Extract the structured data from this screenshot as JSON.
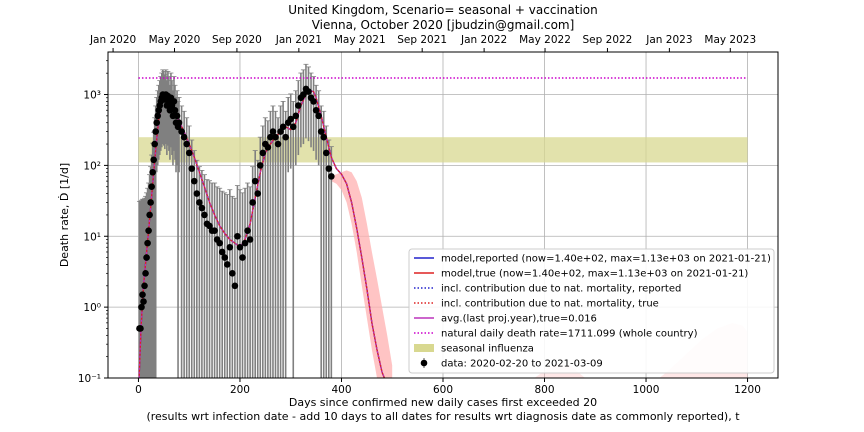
{
  "chart_data": {
    "type": "line",
    "title_line1": "United Kingdom, Scenario= seasonal + vaccination",
    "title_line2": "Vienna, October 2020 [jbudzin@gmail.com]",
    "xlabel_line1": "Days since confirmed new daily cases first exceeded 20",
    "xlabel_line2": "(results wrt infection date - add 10 days to all dates for results wrt diagnosis date as commonly reported), t",
    "ylabel": "Death rate, Ḋ [1/d]",
    "xlim": [
      -60,
      1260
    ],
    "ylim_log10": [
      -1,
      3.6
    ],
    "x_ticks": [
      "0",
      "200",
      "400",
      "600",
      "800",
      "1000",
      "1200"
    ],
    "x_tick_values": [
      0,
      200,
      400,
      600,
      800,
      1000,
      1200
    ],
    "y_ticks": [
      "10⁻¹",
      "10⁰",
      "10¹",
      "10²",
      "10³"
    ],
    "y_tick_exponents": [
      -1,
      0,
      1,
      2,
      3
    ],
    "top_ticks": [
      "Jan 2020",
      "May 2020",
      "Sep 2020",
      "Jan 2021",
      "May 2021",
      "Sep 2021",
      "Jan 2022",
      "May 2022",
      "Sep 2022",
      "Jan 2023",
      "May 2023"
    ],
    "top_tick_values": [
      -50,
      71,
      194,
      316,
      436,
      559,
      681,
      801,
      924,
      1046,
      1166
    ],
    "grid": true,
    "legend_position": "lower-right",
    "legend": [
      "model,reported (now=1.40e+02, max=1.13e+03 on 2021-01-21)",
      "model,true (now=1.40e+02, max=1.13e+03 on 2021-01-21)",
      "incl. contribution due to nat. mortality, reported",
      "incl. contribution due to nat. mortality, true",
      "avg.(last proj.year),true=0.016",
      "natural daily death rate=1711.099 (whole country)",
      "seasonal influenza",
      "data: 2020-02-20 to 2021-03-09"
    ],
    "colors": {
      "model_reported": "#2222cc",
      "model_true": "#dd2222",
      "nat_reported": "#2222cc",
      "nat_true": "#dd2222",
      "avg": "#bb33bb",
      "natural": "#cc00cc",
      "influenza": "#d8d890",
      "data": "#000000",
      "errorbar": "#808080",
      "uncertainty_band": "#ffb0b0"
    },
    "natural_daily_death_rate": 1711.099,
    "influenza_band": {
      "x": [
        0,
        1200
      ],
      "y": [
        110,
        250
      ]
    },
    "model_curve": {
      "x": [
        0,
        5,
        10,
        15,
        20,
        25,
        30,
        35,
        40,
        45,
        50,
        55,
        60,
        70,
        80,
        90,
        100,
        110,
        120,
        130,
        140,
        150,
        160,
        170,
        180,
        190,
        200,
        210,
        220,
        230,
        240,
        250,
        260,
        270,
        280,
        290,
        300,
        310,
        320,
        330,
        340,
        345,
        350,
        360,
        370,
        380,
        390,
        400,
        410,
        420,
        430,
        440,
        450,
        460,
        470,
        480,
        490,
        500
      ],
      "y": [
        0.06,
        0.5,
        2,
        5,
        12,
        30,
        80,
        200,
        450,
        750,
        950,
        1000,
        900,
        650,
        420,
        300,
        200,
        130,
        80,
        50,
        30,
        20,
        14,
        11,
        9,
        8,
        7,
        9,
        15,
        35,
        80,
        150,
        200,
        250,
        300,
        350,
        320,
        400,
        700,
        1000,
        1130,
        1100,
        900,
        500,
        250,
        130,
        90,
        75,
        55,
        30,
        13,
        5,
        1.8,
        0.6,
        0.25,
        0.12,
        0.08,
        0.05
      ]
    },
    "data_points": {
      "x": [
        2,
        4,
        6,
        8,
        10,
        12,
        14,
        16,
        18,
        20,
        22,
        24,
        26,
        28,
        30,
        32,
        34,
        36,
        38,
        40,
        42,
        44,
        46,
        48,
        50,
        52,
        54,
        56,
        58,
        60,
        62,
        64,
        66,
        68,
        70,
        72,
        74,
        76,
        78,
        80,
        85,
        90,
        95,
        100,
        105,
        110,
        115,
        120,
        125,
        130,
        135,
        140,
        145,
        150,
        155,
        160,
        165,
        170,
        175,
        180,
        185,
        190,
        195,
        200,
        205,
        210,
        215,
        220,
        225,
        230,
        235,
        240,
        245,
        250,
        255,
        260,
        265,
        270,
        275,
        280,
        285,
        290,
        295,
        300,
        305,
        310,
        315,
        320,
        325,
        330,
        335,
        340,
        345,
        350,
        355,
        360,
        365,
        370,
        375,
        380
      ],
      "y": [
        0.5,
        0.5,
        1,
        1.5,
        1.2,
        2,
        3,
        5,
        8,
        12,
        20,
        30,
        50,
        80,
        120,
        200,
        300,
        400,
        500,
        600,
        700,
        800,
        900,
        1000,
        950,
        850,
        1000,
        700,
        950,
        800,
        600,
        900,
        700,
        500,
        800,
        600,
        400,
        500,
        350,
        400,
        300,
        250,
        200,
        150,
        90,
        60,
        40,
        30,
        25,
        20,
        15,
        14,
        12,
        12,
        9,
        8,
        6,
        5,
        4,
        7,
        3,
        2,
        10,
        7,
        5,
        8,
        12,
        9,
        30,
        60,
        40,
        100,
        150,
        200,
        180,
        250,
        300,
        250,
        200,
        300,
        350,
        250,
        400,
        450,
        350,
        500,
        700,
        900,
        1000,
        1200,
        1100,
        900,
        800,
        600,
        500,
        300,
        250,
        150,
        90,
        70
      ]
    },
    "uncertainty_band": {
      "x": [
        380,
        390,
        400,
        410,
        420,
        430,
        440,
        450,
        460,
        470,
        480,
        490,
        500
      ],
      "upper": [
        70,
        75,
        80,
        85,
        80,
        60,
        35,
        15,
        6,
        2.5,
        1,
        0.4,
        0.15
      ],
      "lower": [
        60,
        55,
        45,
        30,
        15,
        6,
        2,
        0.7,
        0.25,
        0.1,
        0.05,
        0.03,
        0.02
      ]
    },
    "uncertainty_band_late": {
      "x": [
        700,
        740,
        780,
        820,
        850,
        880,
        900,
        920,
        960,
        1000,
        1040,
        1080,
        1110,
        1140,
        1170,
        1190,
        1200
      ],
      "upper": [
        0.03,
        0.05,
        0.1,
        0.16,
        0.15,
        0.1,
        0.07,
        0.05,
        0.05,
        0.07,
        0.12,
        0.22,
        0.35,
        0.5,
        0.6,
        0.55,
        0.45
      ],
      "lower": [
        0.02,
        0.02,
        0.03,
        0.04,
        0.04,
        0.03,
        0.02,
        0.02,
        0.02,
        0.02,
        0.03,
        0.04,
        0.05,
        0.06,
        0.06,
        0.05,
        0.04
      ]
    }
  }
}
